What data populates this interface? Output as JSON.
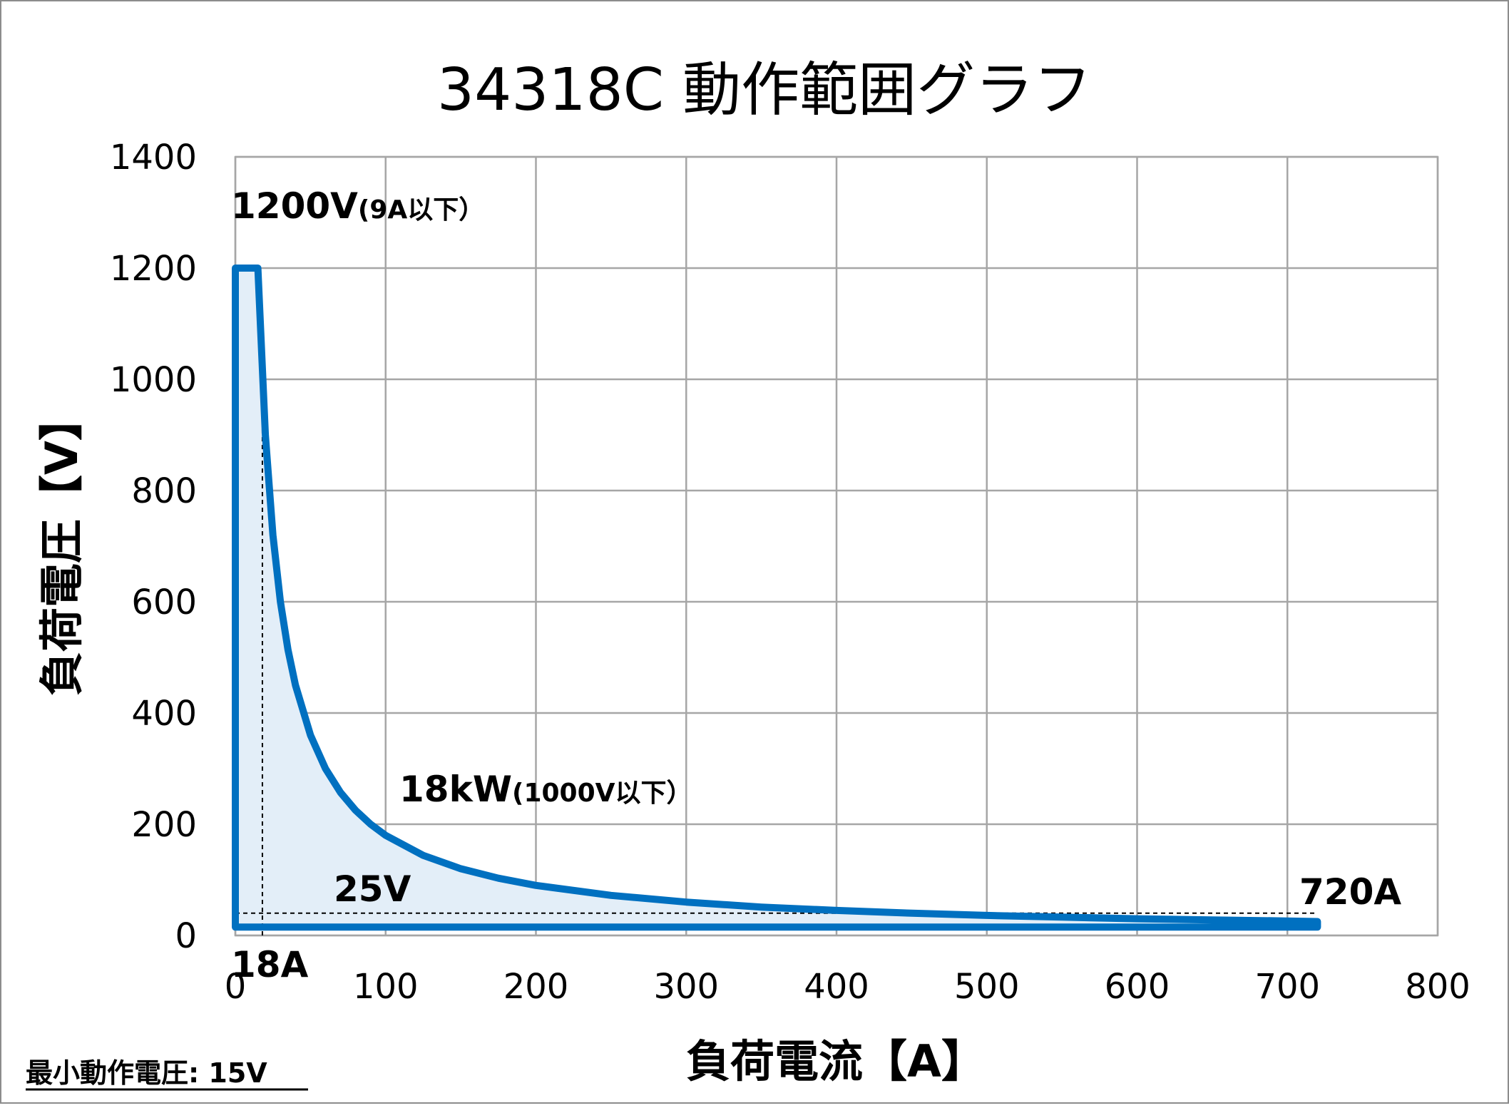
{
  "chart_data": {
    "type": "area",
    "title": "34318C  動作範囲グラフ",
    "xlabel": "負荷電流【A】",
    "ylabel": "負荷電圧【V】",
    "xlim": [
      0,
      800
    ],
    "ylim": [
      0,
      1400
    ],
    "xticks": [
      0,
      100,
      200,
      300,
      400,
      500,
      600,
      700,
      800
    ],
    "yticks": [
      0,
      200,
      400,
      600,
      800,
      1000,
      1200,
      1400
    ],
    "grid": true,
    "series": [
      {
        "points": [
          [
            0,
            1200
          ],
          [
            10,
            1200
          ],
          [
            15,
            1200
          ],
          [
            20,
            900
          ],
          [
            25,
            720
          ],
          [
            30,
            600
          ],
          [
            35,
            514
          ],
          [
            40,
            450
          ],
          [
            50,
            360
          ],
          [
            60,
            300
          ],
          [
            70,
            257
          ],
          [
            80,
            225
          ],
          [
            90,
            200
          ],
          [
            100,
            180
          ],
          [
            125,
            144
          ],
          [
            150,
            120
          ],
          [
            175,
            103
          ],
          [
            200,
            90
          ],
          [
            250,
            72
          ],
          [
            300,
            60
          ],
          [
            350,
            51
          ],
          [
            400,
            45
          ],
          [
            450,
            40
          ],
          [
            500,
            36
          ],
          [
            550,
            33
          ],
          [
            600,
            30
          ],
          [
            650,
            28
          ],
          [
            700,
            26
          ],
          [
            720,
            25
          ],
          [
            720,
            15
          ],
          [
            0,
            15
          ]
        ]
      }
    ],
    "reference_lines": [
      {
        "type": "vertical",
        "x": 18,
        "y_range": [
          0,
          1000
        ]
      },
      {
        "type": "horizontal",
        "y": 40,
        "x_range": [
          0,
          720
        ]
      }
    ],
    "annotations": {
      "max_voltage": {
        "main": "1200V",
        "note": "(9A以下）"
      },
      "max_power": {
        "main": "18kW",
        "note": "(1000V以下）"
      },
      "min_voltage_label": "25V",
      "min_current_label": "18A",
      "max_current_label": "720A"
    },
    "colors": {
      "line": "#0070c0",
      "fill": "#e3eef8",
      "grid": "#a6a6a6",
      "reference": "#000000"
    }
  },
  "footnote": "最小動作電圧: 15V"
}
